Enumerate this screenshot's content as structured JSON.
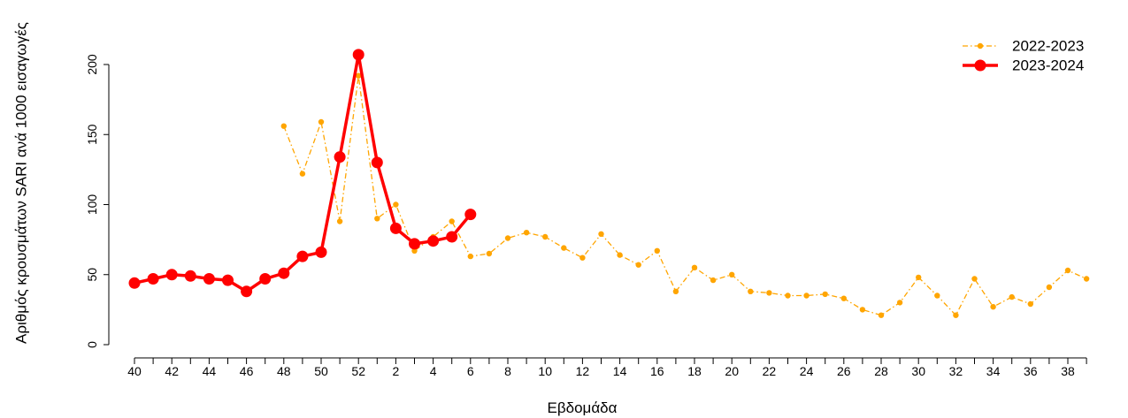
{
  "chart_data": {
    "type": "line",
    "title": "",
    "xlabel": "Εβδομάδα",
    "ylabel": "Αριθμός κρουσμάτων SARI ανά 1000 εισαγωγές",
    "ylim": [
      0,
      200
    ],
    "yticks": [
      0,
      50,
      100,
      150,
      200
    ],
    "grid": false,
    "legend_position": "top-right",
    "categories": [
      40,
      41,
      42,
      43,
      44,
      45,
      46,
      47,
      48,
      49,
      50,
      51,
      52,
      1,
      2,
      3,
      4,
      5,
      6,
      7,
      8,
      9,
      10,
      11,
      12,
      13,
      14,
      15,
      16,
      17,
      18,
      19,
      20,
      21,
      22,
      23,
      24,
      25,
      26,
      27,
      28,
      29,
      30,
      31,
      32,
      33,
      34,
      35,
      36,
      37,
      38,
      39
    ],
    "tick_labels": [
      "40",
      "",
      "42",
      "",
      "44",
      "",
      "46",
      "",
      "48",
      "",
      "50",
      "",
      "52",
      "",
      "2",
      "",
      "4",
      "",
      "6",
      "",
      "8",
      "",
      "10",
      "",
      "12",
      "",
      "14",
      "",
      "16",
      "",
      "18",
      "",
      "20",
      "",
      "22",
      "",
      "24",
      "",
      "26",
      "",
      "28",
      "",
      "30",
      "",
      "32",
      "",
      "34",
      "",
      "36",
      "",
      "38",
      ""
    ],
    "series": [
      {
        "name": "2022-2023",
        "color": "#FFA500",
        "style": "dash-dot",
        "values": [
          null,
          null,
          null,
          null,
          null,
          null,
          null,
          null,
          156,
          122,
          159,
          88,
          192,
          90,
          100,
          67,
          77,
          88,
          63,
          65,
          76,
          80,
          77,
          69,
          62,
          79,
          64,
          57,
          67,
          38,
          55,
          46,
          50,
          38,
          37,
          35,
          35,
          36,
          33,
          25,
          21,
          30,
          48,
          35,
          21,
          47,
          27,
          34,
          29,
          41,
          53,
          47
        ]
      },
      {
        "name": "2023-2024",
        "color": "#FF0000",
        "style": "solid",
        "values": [
          44,
          47,
          50,
          49,
          47,
          46,
          38,
          47,
          51,
          63,
          66,
          134,
          207,
          130,
          83,
          72,
          74,
          77,
          93,
          null,
          null,
          null,
          null,
          null,
          null,
          null,
          null,
          null,
          null,
          null,
          null,
          null,
          null,
          null,
          null,
          null,
          null,
          null,
          null,
          null,
          null,
          null,
          null,
          null,
          null,
          null,
          null,
          null,
          null,
          null,
          null,
          null
        ]
      }
    ]
  }
}
